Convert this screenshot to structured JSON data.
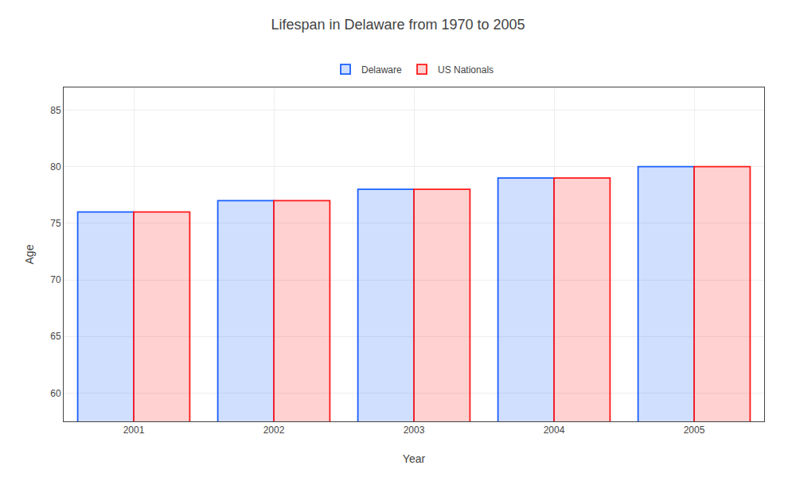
{
  "chart_data": {
    "type": "bar",
    "title": "Lifespan in Delaware from 1970 to 2005",
    "xlabel": "Year",
    "ylabel": "Age",
    "categories": [
      "2001",
      "2002",
      "2003",
      "2004",
      "2005"
    ],
    "series": [
      {
        "name": "Delaware",
        "color": "#1a5fff",
        "values": [
          76,
          77,
          78,
          79,
          80
        ]
      },
      {
        "name": "US Nationals",
        "color": "#ff1a1a",
        "values": [
          76,
          77,
          78,
          79,
          80
        ]
      }
    ],
    "ylim": [
      57.5,
      87
    ],
    "yticks": [
      60,
      65,
      70,
      75,
      80,
      85
    ],
    "grid": true,
    "legend": "upper center"
  }
}
